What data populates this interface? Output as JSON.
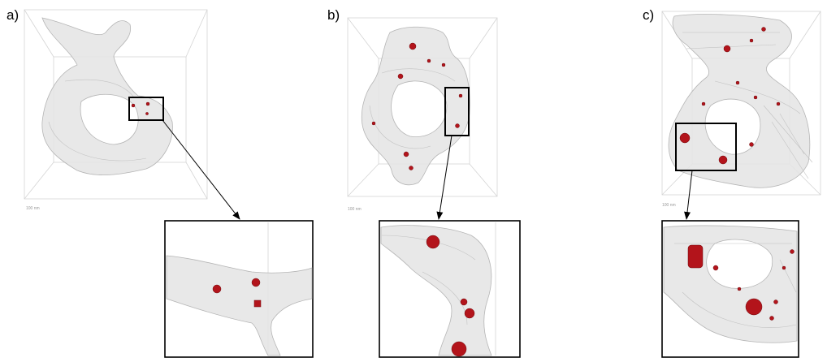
{
  "panels": [
    {
      "label": "a)",
      "scale_label": "100 nm"
    },
    {
      "label": "b)",
      "scale_label": "100 nm"
    },
    {
      "label": "c)",
      "scale_label": "100 nm"
    }
  ]
}
